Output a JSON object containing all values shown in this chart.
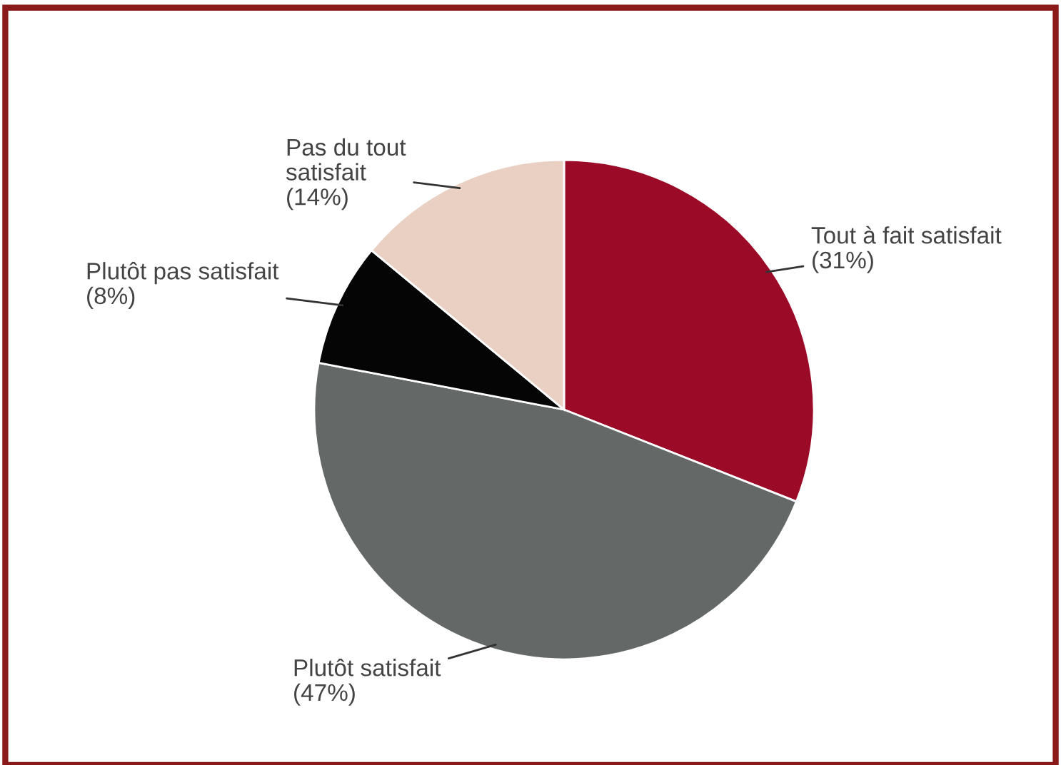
{
  "chart_data": {
    "type": "pie",
    "categories": [
      "Tout à fait satisfait",
      "Plutôt satisfait",
      "Plutôt pas satisfait",
      "Pas du tout\nsatisfait"
    ],
    "values": [
      31,
      47,
      8,
      14
    ],
    "value_labels": [
      "(31%)",
      "(47%)",
      "(8%)",
      "(14%)"
    ],
    "colors": [
      "#9b0a26",
      "#646968",
      "#050505",
      "#e9d0c2"
    ]
  }
}
